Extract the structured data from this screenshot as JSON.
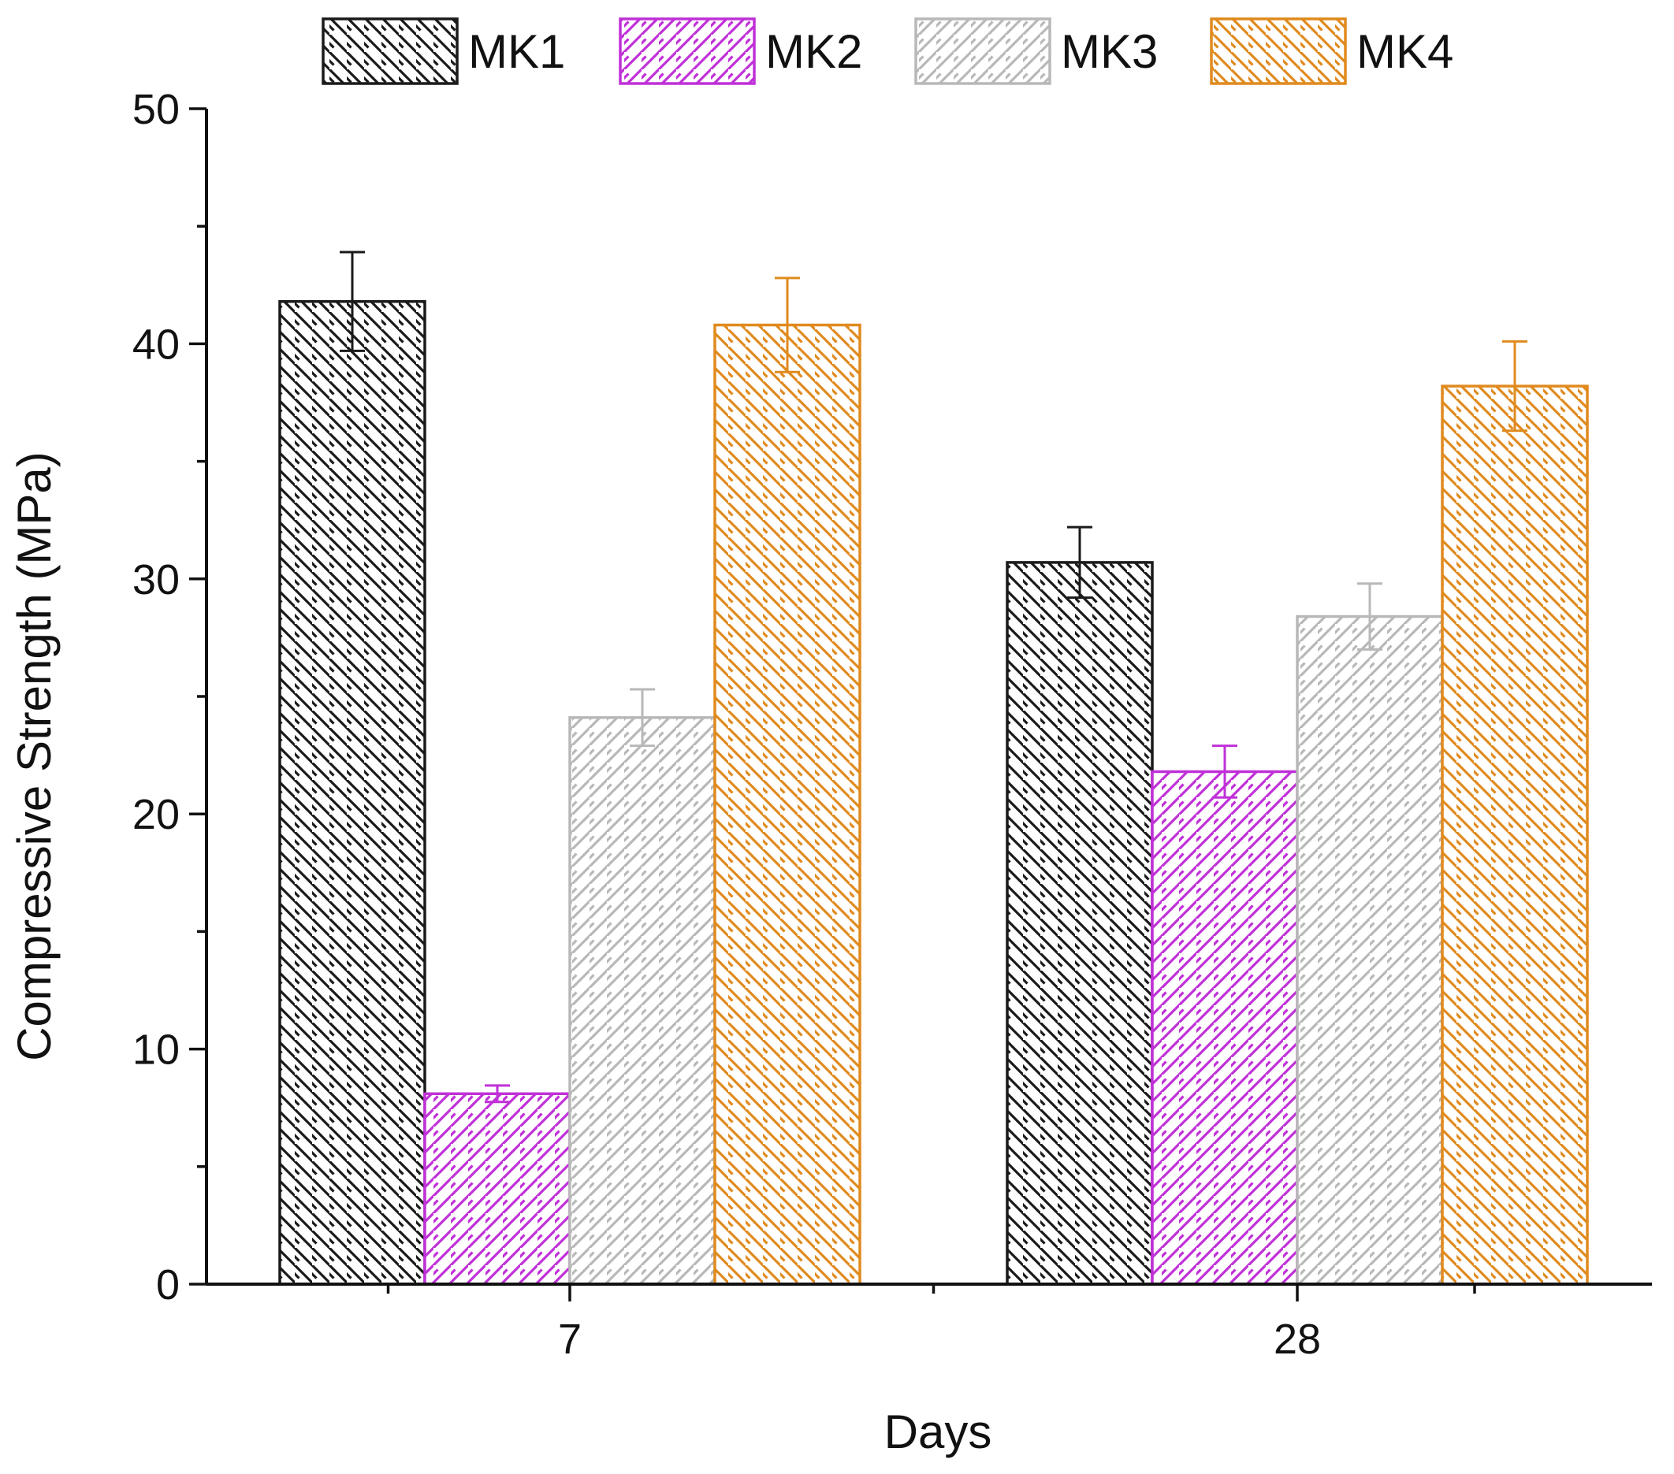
{
  "chart_data": {
    "type": "bar",
    "title": "",
    "xlabel": "Days",
    "ylabel": "Compressive Strength (MPa)",
    "categories": [
      "7",
      "28"
    ],
    "ylim": [
      0,
      50
    ],
    "yticks": [
      "0",
      "10",
      "20",
      "30",
      "40",
      "50"
    ],
    "legend_position": "top",
    "error_bars": true,
    "series": [
      {
        "name": "MK1",
        "values": [
          41.8,
          30.7
        ],
        "errors": [
          2.1,
          1.5
        ],
        "color": "#1a1a1a",
        "hatch": "backslash"
      },
      {
        "name": "MK2",
        "values": [
          8.1,
          21.8
        ],
        "errors": [
          0.35,
          1.1
        ],
        "color": "#c030d8",
        "hatch": "slash"
      },
      {
        "name": "MK3",
        "values": [
          24.1,
          28.4
        ],
        "errors": [
          1.2,
          1.4
        ],
        "color": "#b8b8b8",
        "hatch": "slash"
      },
      {
        "name": "MK4",
        "values": [
          40.8,
          38.2
        ],
        "errors": [
          2.0,
          1.9
        ],
        "color": "#e08a1e",
        "hatch": "backslash"
      }
    ]
  }
}
